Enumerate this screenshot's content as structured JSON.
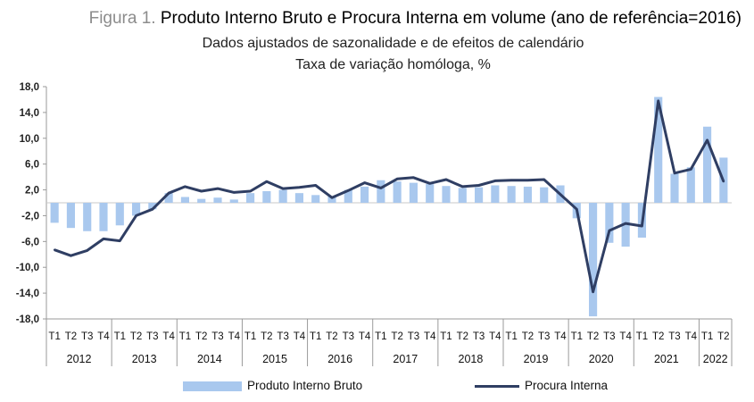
{
  "title": {
    "prefix": "Figura 1.",
    "main": "Produto Interno Bruto e Procura Interna em volume (ano de referência=2016)"
  },
  "subtitle": [
    "Dados ajustados de sazonalidade e de efeitos de calendário",
    "Taxa de variação homóloga, %"
  ],
  "colors": {
    "bar": "#a9c8ee",
    "line": "#2f3e63",
    "axis": "#9a9a9a"
  },
  "chart_data": {
    "type": "bar+line",
    "title": "Produto Interno Bruto e Procura Interna em volume (ano de referência=2016)",
    "ylim": [
      -18,
      18
    ],
    "yticks": [
      "18,0",
      "14,0",
      "10,0",
      "6,0",
      "2,0",
      "-2,0",
      "-6,0",
      "-10,0",
      "-14,0",
      "-18,0"
    ],
    "ytick_values": [
      18,
      14,
      10,
      6,
      2,
      -2,
      -6,
      -10,
      -14,
      -18
    ],
    "years": [
      "2012",
      "2013",
      "2014",
      "2015",
      "2016",
      "2017",
      "2018",
      "2019",
      "2020",
      "2021",
      "2022"
    ],
    "quarters": [
      "T1",
      "T2",
      "T3",
      "T4",
      "T1",
      "T2",
      "T3",
      "T4",
      "T1",
      "T2",
      "T3",
      "T4",
      "T1",
      "T2",
      "T3",
      "T4",
      "T1",
      "T2",
      "T3",
      "T4",
      "T1",
      "T2",
      "T3",
      "T4",
      "T1",
      "T2",
      "T3",
      "T4",
      "T1",
      "T2",
      "T3",
      "T4",
      "T1",
      "T2",
      "T3",
      "T4",
      "T1",
      "T2",
      "T3",
      "T4",
      "T1",
      "T2"
    ],
    "series": [
      {
        "name": "Produto Interno Bruto",
        "kind": "bar",
        "values": [
          -3.1,
          -3.9,
          -4.4,
          -4.4,
          -3.5,
          -2.0,
          -1.0,
          1.5,
          0.9,
          0.6,
          0.8,
          0.5,
          1.5,
          1.8,
          2.0,
          1.5,
          1.2,
          1.0,
          2.0,
          2.5,
          3.5,
          3.3,
          3.1,
          2.9,
          2.6,
          2.3,
          2.4,
          2.7,
          2.6,
          2.5,
          2.4,
          2.7,
          -2.4,
          -17.6,
          -6.2,
          -6.8,
          -5.4,
          16.4,
          4.5,
          5.5,
          11.8,
          7.0
        ]
      },
      {
        "name": "Procura Interna",
        "kind": "line",
        "values": [
          -7.3,
          -8.2,
          -7.4,
          -5.6,
          -5.9,
          -2.0,
          -1.0,
          1.5,
          2.5,
          1.8,
          2.2,
          1.6,
          1.8,
          3.3,
          2.2,
          2.4,
          2.7,
          0.8,
          1.9,
          3.1,
          2.3,
          3.7,
          3.9,
          3.0,
          3.6,
          2.5,
          2.7,
          3.4,
          3.5,
          3.5,
          3.6,
          1.3,
          -1.0,
          -13.8,
          -4.3,
          -3.2,
          -3.6,
          15.8,
          4.6,
          5.2,
          9.7,
          3.3
        ]
      }
    ]
  },
  "legend": {
    "bar_label": "Produto Interno Bruto",
    "line_label": "Procura Interna"
  }
}
